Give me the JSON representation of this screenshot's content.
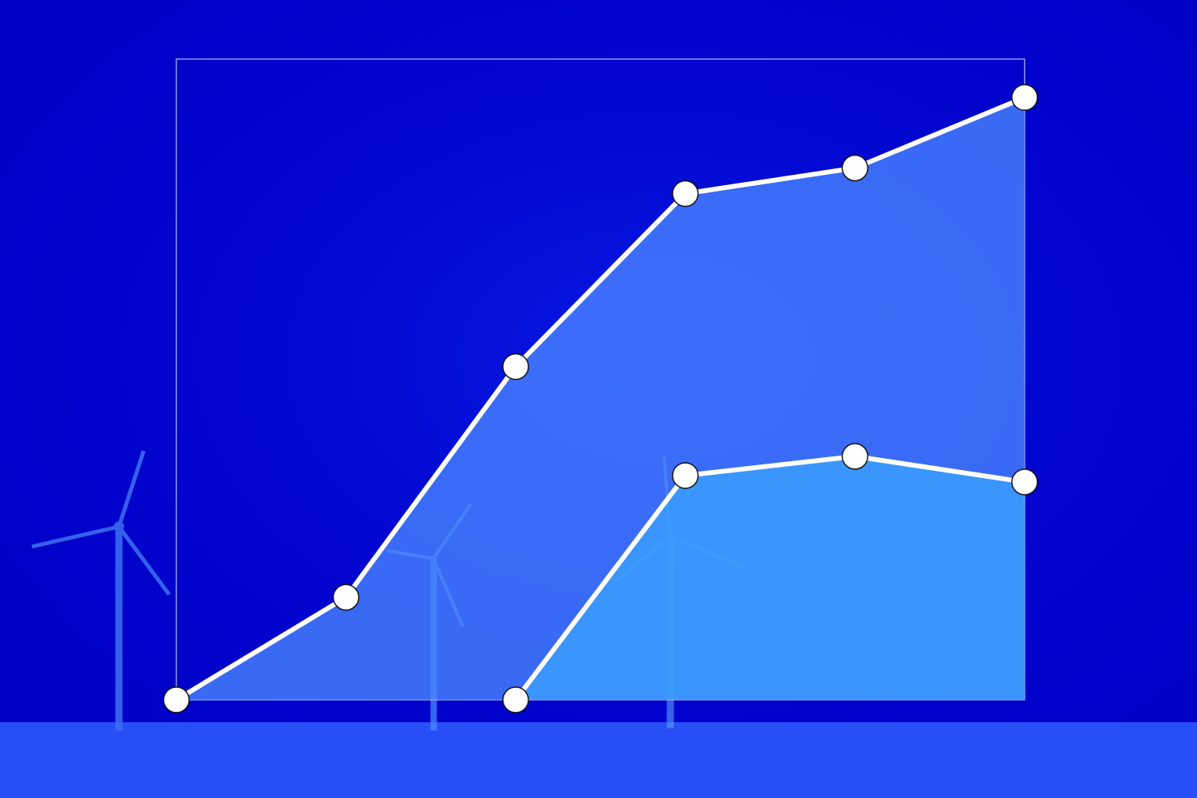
{
  "colors": {
    "background": "#0000c8",
    "background_glow": "#1a3cff",
    "ground": "#2f5cff",
    "turbine": "#3a6cf0",
    "area_primary": "#4a86ff",
    "area_secondary": "#3aa6ff",
    "line": "#ffffff",
    "marker_fill": "#ffffff",
    "marker_stroke": "#111111",
    "frame": "#c8d2ff"
  },
  "chart_data": {
    "type": "area",
    "title": "",
    "xlabel": "",
    "ylabel": "",
    "x": [
      0,
      1,
      2,
      3,
      4,
      5
    ],
    "xlim": [
      0,
      5
    ],
    "ylim": [
      0,
      100
    ],
    "grid": false,
    "legend": "none",
    "series": [
      {
        "x": [
          0,
          1,
          2,
          3,
          4,
          5
        ],
        "values": [
          0,
          16,
          52,
          79,
          83,
          94
        ]
      },
      {
        "x": [
          2,
          3,
          4,
          5
        ],
        "values": [
          0,
          35,
          38,
          34
        ]
      }
    ]
  }
}
